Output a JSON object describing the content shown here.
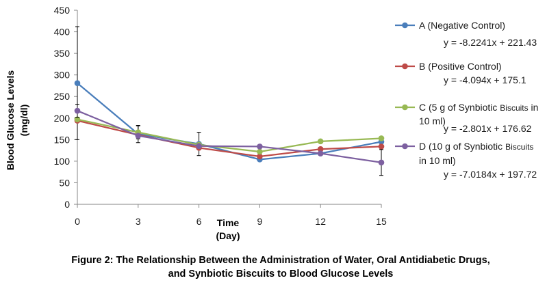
{
  "chart_data": {
    "type": "line",
    "x": [
      0,
      3,
      6,
      9,
      12,
      15
    ],
    "xlim": [
      0,
      15
    ],
    "ylim": [
      0,
      450
    ],
    "xticks": [
      "0",
      "3",
      "6",
      "9",
      "12",
      "15"
    ],
    "yticks": [
      "0",
      "50",
      "100",
      "150",
      "200",
      "250",
      "300",
      "350",
      "400",
      "450"
    ],
    "xlabel": [
      "Time",
      "(Day)"
    ],
    "ylabel": [
      "Blood Glucose Levels",
      "(mg/dl)"
    ],
    "grid": false,
    "legend_position": "right",
    "series": [
      {
        "name_parts": [
          {
            "text": "A (Negative Control)",
            "small": false
          }
        ],
        "color": "#4a7ebb",
        "values": [
          281,
          163,
          140,
          104,
          118,
          145
        ],
        "errors": [
          131,
          20,
          27,
          0,
          0,
          0
        ],
        "equation": "y = -8.2241x + 221.43"
      },
      {
        "name_parts": [
          {
            "text": "B (Positive Control)",
            "small": false
          }
        ],
        "color": "#be4b48",
        "values": [
          194,
          161,
          131,
          111,
          128,
          134
        ],
        "errors": [
          0,
          0,
          0,
          0,
          0,
          0
        ],
        "equation": "y = -4.094x + 175.1"
      },
      {
        "name_parts": [
          {
            "text": "C (5 g of Synbiotic ",
            "small": false
          },
          {
            "text": "Biscuits",
            "small": true
          },
          {
            "text": " in",
            "small": false
          }
        ],
        "name_line2": "10 ml)",
        "color": "#98b954",
        "values": [
          197,
          167,
          138,
          122,
          146,
          153
        ],
        "errors": [
          0,
          15,
          0,
          0,
          0,
          0
        ],
        "equation": "y = -2.801x + 176.62"
      },
      {
        "name_parts": [
          {
            "text": "D (10 g of Synbiotic ",
            "small": false
          },
          {
            "text": "Biscuits",
            "small": true
          }
        ],
        "name_line2": "in 10 ml)",
        "color": "#7d60a0",
        "values": [
          217,
          159,
          135,
          134,
          118,
          97
        ],
        "errors": [
          15,
          0,
          0,
          0,
          0,
          30
        ],
        "equation": "y = -7.0184x + 197.72"
      }
    ],
    "caption": [
      "Figure 2: The Relationship Between the Administration of Water, Oral Antidiabetic Drugs,",
      "and Synbiotic Biscuits to Blood Glucose Levels"
    ]
  }
}
